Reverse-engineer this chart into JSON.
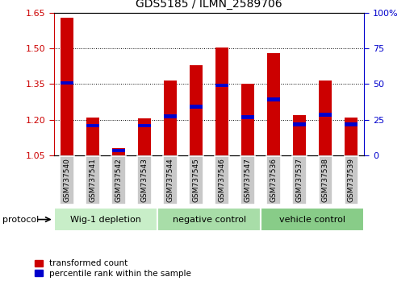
{
  "title": "GDS5185 / ILMN_2589706",
  "samples": [
    "GSM737540",
    "GSM737541",
    "GSM737542",
    "GSM737543",
    "GSM737544",
    "GSM737545",
    "GSM737546",
    "GSM737547",
    "GSM737536",
    "GSM737537",
    "GSM737538",
    "GSM737539"
  ],
  "red_values": [
    1.63,
    1.21,
    1.08,
    1.205,
    1.365,
    1.43,
    1.505,
    1.35,
    1.48,
    1.22,
    1.365,
    1.21
  ],
  "blue_values": [
    1.355,
    1.175,
    1.07,
    1.175,
    1.215,
    1.255,
    1.345,
    1.21,
    1.285,
    1.18,
    1.22,
    1.18
  ],
  "ylim_left": [
    1.05,
    1.65
  ],
  "ylim_right": [
    0,
    100
  ],
  "yticks_left": [
    1.05,
    1.2,
    1.35,
    1.5,
    1.65
  ],
  "yticks_right": [
    0,
    25,
    50,
    75,
    100
  ],
  "bar_color": "#cc0000",
  "blue_color": "#0000cc",
  "group_labels": [
    "Wig-1 depletion",
    "negative control",
    "vehicle control"
  ],
  "group_ranges": [
    [
      0,
      4
    ],
    [
      4,
      8
    ],
    [
      8,
      12
    ]
  ],
  "group_colors": [
    "#c8eec8",
    "#a8dda8",
    "#88cc88"
  ],
  "protocol_label": "protocol",
  "bar_width": 0.5,
  "blue_bar_height": 0.016,
  "legend_red": "transformed count",
  "legend_blue": "percentile rank within the sample",
  "right_axis_color": "#0000cc",
  "left_axis_color": "#cc0000",
  "tick_label_bg": "#c8c8c8",
  "figsize": [
    5.13,
    3.54
  ],
  "dpi": 100
}
